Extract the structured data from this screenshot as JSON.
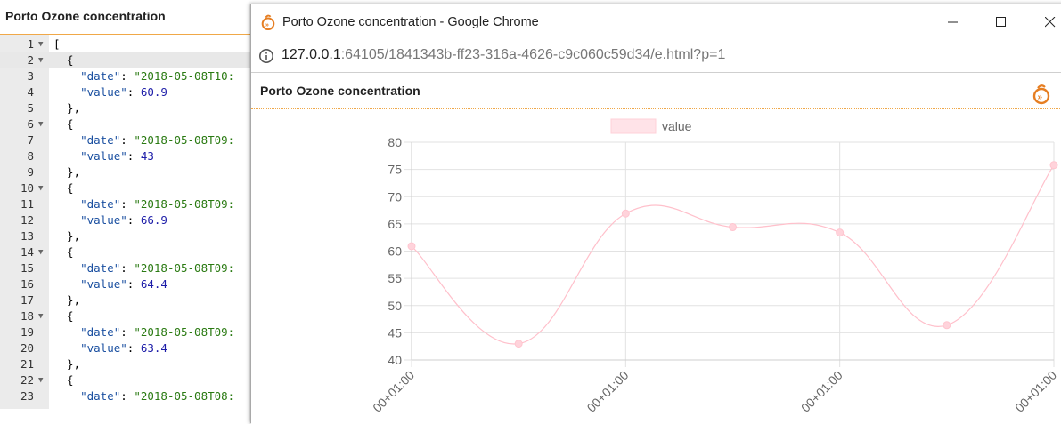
{
  "app": {
    "title": "Porto Ozone concentration"
  },
  "editor": {
    "lines": [
      {
        "n": "1",
        "fold": true,
        "code": [
          {
            "t": "p",
            "v": "["
          }
        ]
      },
      {
        "n": "2",
        "fold": true,
        "active": true,
        "code": [
          {
            "t": "p",
            "v": "  {"
          }
        ]
      },
      {
        "n": "3",
        "code": [
          {
            "t": "p",
            "v": "    "
          },
          {
            "t": "k",
            "v": "\"date\""
          },
          {
            "t": "p",
            "v": ": "
          },
          {
            "t": "s",
            "v": "\"2018-05-08T10:"
          }
        ]
      },
      {
        "n": "4",
        "code": [
          {
            "t": "p",
            "v": "    "
          },
          {
            "t": "k",
            "v": "\"value\""
          },
          {
            "t": "p",
            "v": ": "
          },
          {
            "t": "n",
            "v": "60.9"
          }
        ]
      },
      {
        "n": "5",
        "code": [
          {
            "t": "p",
            "v": "  },"
          }
        ]
      },
      {
        "n": "6",
        "fold": true,
        "code": [
          {
            "t": "p",
            "v": "  {"
          }
        ]
      },
      {
        "n": "7",
        "code": [
          {
            "t": "p",
            "v": "    "
          },
          {
            "t": "k",
            "v": "\"date\""
          },
          {
            "t": "p",
            "v": ": "
          },
          {
            "t": "s",
            "v": "\"2018-05-08T09:"
          }
        ]
      },
      {
        "n": "8",
        "code": [
          {
            "t": "p",
            "v": "    "
          },
          {
            "t": "k",
            "v": "\"value\""
          },
          {
            "t": "p",
            "v": ": "
          },
          {
            "t": "n",
            "v": "43"
          }
        ]
      },
      {
        "n": "9",
        "code": [
          {
            "t": "p",
            "v": "  },"
          }
        ]
      },
      {
        "n": "10",
        "fold": true,
        "code": [
          {
            "t": "p",
            "v": "  {"
          }
        ]
      },
      {
        "n": "11",
        "code": [
          {
            "t": "p",
            "v": "    "
          },
          {
            "t": "k",
            "v": "\"date\""
          },
          {
            "t": "p",
            "v": ": "
          },
          {
            "t": "s",
            "v": "\"2018-05-08T09:"
          }
        ]
      },
      {
        "n": "12",
        "code": [
          {
            "t": "p",
            "v": "    "
          },
          {
            "t": "k",
            "v": "\"value\""
          },
          {
            "t": "p",
            "v": ": "
          },
          {
            "t": "n",
            "v": "66.9"
          }
        ]
      },
      {
        "n": "13",
        "code": [
          {
            "t": "p",
            "v": "  },"
          }
        ]
      },
      {
        "n": "14",
        "fold": true,
        "code": [
          {
            "t": "p",
            "v": "  {"
          }
        ]
      },
      {
        "n": "15",
        "code": [
          {
            "t": "p",
            "v": "    "
          },
          {
            "t": "k",
            "v": "\"date\""
          },
          {
            "t": "p",
            "v": ": "
          },
          {
            "t": "s",
            "v": "\"2018-05-08T09:"
          }
        ]
      },
      {
        "n": "16",
        "code": [
          {
            "t": "p",
            "v": "    "
          },
          {
            "t": "k",
            "v": "\"value\""
          },
          {
            "t": "p",
            "v": ": "
          },
          {
            "t": "n",
            "v": "64.4"
          }
        ]
      },
      {
        "n": "17",
        "code": [
          {
            "t": "p",
            "v": "  },"
          }
        ]
      },
      {
        "n": "18",
        "fold": true,
        "code": [
          {
            "t": "p",
            "v": "  {"
          }
        ]
      },
      {
        "n": "19",
        "code": [
          {
            "t": "p",
            "v": "    "
          },
          {
            "t": "k",
            "v": "\"date\""
          },
          {
            "t": "p",
            "v": ": "
          },
          {
            "t": "s",
            "v": "\"2018-05-08T09:"
          }
        ]
      },
      {
        "n": "20",
        "code": [
          {
            "t": "p",
            "v": "    "
          },
          {
            "t": "k",
            "v": "\"value\""
          },
          {
            "t": "p",
            "v": ": "
          },
          {
            "t": "n",
            "v": "63.4"
          }
        ]
      },
      {
        "n": "21",
        "code": [
          {
            "t": "p",
            "v": "  },"
          }
        ]
      },
      {
        "n": "22",
        "fold": true,
        "code": [
          {
            "t": "p",
            "v": "  {"
          }
        ]
      },
      {
        "n": "23",
        "code": [
          {
            "t": "p",
            "v": "    "
          },
          {
            "t": "k",
            "v": "\"date\""
          },
          {
            "t": "p",
            "v": ": "
          },
          {
            "t": "s",
            "v": "\"2018-05-08T08:"
          }
        ]
      }
    ]
  },
  "browser": {
    "window_title": "Porto Ozone concentration - Google Chrome",
    "url_host": "127.0.0.1",
    "url_rest": ":64105/1841343b-ff23-316a-4626-c9c060c59d34/e.html?p=1",
    "panel_title": "Porto Ozone concentration"
  },
  "chart_data": {
    "type": "line",
    "series": [
      {
        "name": "value",
        "values": [
          60.9,
          43,
          66.9,
          64.4,
          63.4,
          46.4,
          75.8
        ]
      }
    ],
    "x_tick_labels": [
      "00+01:00",
      "00+01:00",
      "00+01:00",
      "00+01:00"
    ],
    "yticks": [
      40,
      45,
      50,
      55,
      60,
      65,
      70,
      75,
      80
    ],
    "ylim": [
      40,
      80
    ],
    "legend_position": "top",
    "grid": true,
    "color": "#ffc0cb"
  }
}
